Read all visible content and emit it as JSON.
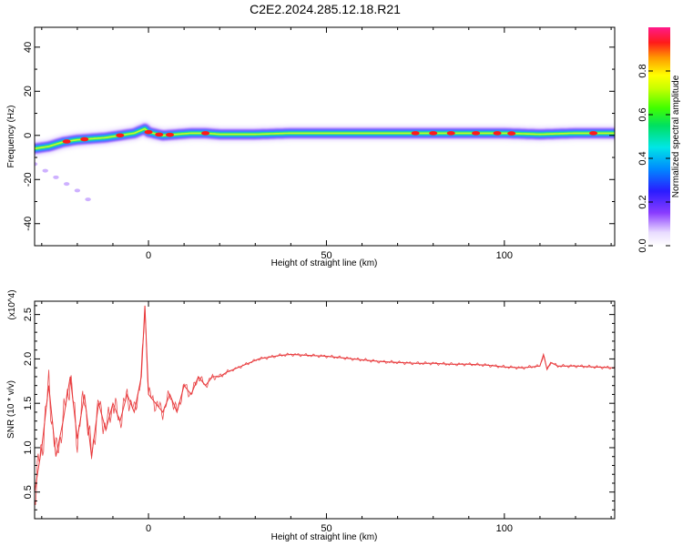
{
  "title": "C2E2.2024.285.12.18.R21",
  "chart_data": [
    {
      "type": "heatmap",
      "xlabel": "Height of straight line (km)",
      "ylabel": "Frequency (Hz)",
      "xlim": [
        -32,
        131
      ],
      "ylim": [
        -50,
        49
      ],
      "x_ticks": [
        0,
        50,
        100
      ],
      "y_ticks": [
        -40,
        -20,
        0,
        20,
        40
      ],
      "colorbar": {
        "label": "Normalized spectral amplitude",
        "range": [
          0,
          1
        ],
        "ticks": [
          "0.0",
          "0.2",
          "0.4",
          "0.6",
          "0.8"
        ]
      },
      "ridge": {
        "x": [
          -32,
          -28,
          -24,
          -20,
          -16,
          -12,
          -8,
          -4,
          -1,
          0,
          4,
          8,
          12,
          16,
          20,
          30,
          40,
          60,
          80,
          100,
          110,
          120,
          131
        ],
        "frequency": [
          -6,
          -5,
          -3,
          -2,
          -1.5,
          -1,
          0,
          1,
          3,
          1.5,
          0,
          0.5,
          1,
          1,
          0.5,
          0.5,
          1,
          1,
          1,
          1,
          0.5,
          1,
          1
        ],
        "peak_amplitude_x": [
          -23,
          -18,
          -8,
          0,
          3,
          6,
          16,
          75,
          80,
          85,
          92,
          98,
          102,
          125
        ]
      },
      "side_branch": {
        "x": [
          -32,
          -29,
          -26,
          -23,
          -20,
          -17
        ],
        "frequency": [
          -13,
          -16,
          -19,
          -22,
          -25,
          -29
        ]
      }
    },
    {
      "type": "line",
      "xlabel": "Height of straight line (km)",
      "ylabel": "SNR (10 * v/v)",
      "y_multiplier": "(x10^4)",
      "xlim": [
        -32,
        131
      ],
      "ylim": [
        0.2,
        2.65
      ],
      "x_ticks": [
        0,
        50,
        100
      ],
      "y_ticks": [
        0.5,
        1.0,
        1.5,
        2.0,
        2.5
      ],
      "series": [
        {
          "color": "#e8393b",
          "x": [
            -32,
            -30,
            -28,
            -26,
            -24,
            -22,
            -20,
            -18,
            -16,
            -14,
            -12,
            -10,
            -8,
            -6,
            -4,
            -2,
            -1,
            0,
            2,
            4,
            6,
            8,
            10,
            12,
            14,
            16,
            18,
            20,
            22,
            25,
            28,
            31,
            34,
            37,
            40,
            45,
            50,
            55,
            60,
            65,
            70,
            75,
            80,
            85,
            90,
            95,
            100,
            105,
            110,
            111,
            112,
            113,
            115,
            120,
            125,
            131
          ],
          "y": [
            0.5,
            1.0,
            1.7,
            0.9,
            1.3,
            1.8,
            1.1,
            1.6,
            0.9,
            1.5,
            1.2,
            1.5,
            1.3,
            1.6,
            1.4,
            1.8,
            2.6,
            1.6,
            1.5,
            1.4,
            1.6,
            1.4,
            1.7,
            1.6,
            1.8,
            1.7,
            1.8,
            1.8,
            1.85,
            1.9,
            1.95,
            2.0,
            2.02,
            2.04,
            2.05,
            2.04,
            2.03,
            2.01,
            1.99,
            1.97,
            1.96,
            1.95,
            1.95,
            1.94,
            1.94,
            1.93,
            1.91,
            1.9,
            1.92,
            2.05,
            1.88,
            1.96,
            1.92,
            1.92,
            1.91,
            1.9
          ]
        }
      ]
    }
  ]
}
